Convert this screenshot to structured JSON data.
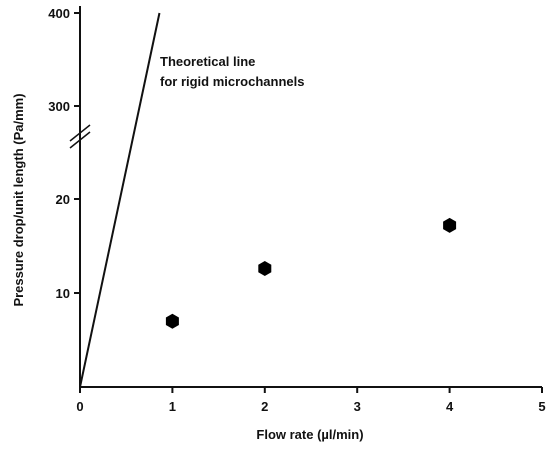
{
  "chart_data": {
    "type": "scatter",
    "xlabel": "Flow rate (µl/min)",
    "ylabel": "Pressure drop/unit length (Pa/mm)",
    "xlim": [
      0,
      5
    ],
    "x_ticks": [
      0,
      1,
      2,
      3,
      4,
      5
    ],
    "y_ticks_lower": [
      10,
      20
    ],
    "y_ticks_upper": [
      300,
      400
    ],
    "y_axis_break": true,
    "grid": false,
    "points": [
      {
        "x": 1,
        "y": 7.0
      },
      {
        "x": 2,
        "y": 12.6
      },
      {
        "x": 4,
        "y": 17.2
      }
    ],
    "reference_line": {
      "label_line1": "Theoretical line",
      "label_line2": "for rigid microchannels",
      "x_start": 0,
      "y_start": 0,
      "x_end": 0.86,
      "y_end": 400
    }
  }
}
